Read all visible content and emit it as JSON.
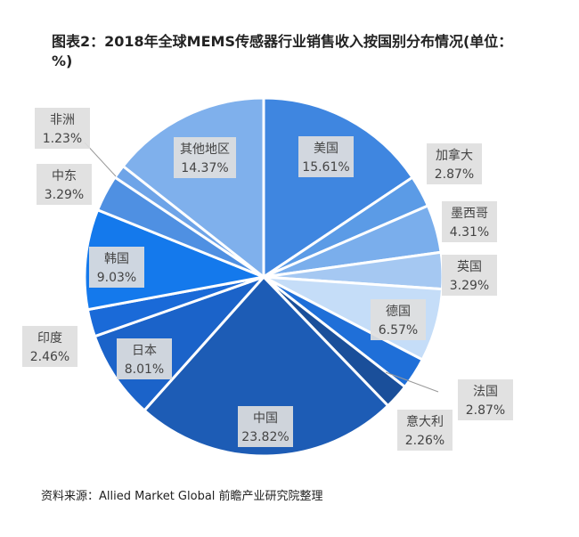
{
  "title": "图表2：2018年全球MEMS传感器行业销售收入按国别分布情况(单位：%)",
  "source": "资料来源：Allied Market Global 前瞻产业研究院整理",
  "chart_data": {
    "type": "pie",
    "title": "图表2：2018年全球MEMS传感器行业销售收入按国别分布情况(单位：%)",
    "unit": "%",
    "start": "12 o'clock, clockwise",
    "slices": [
      {
        "label": "美国",
        "value": 15.61,
        "color": "#3f86e0"
      },
      {
        "label": "加拿大",
        "value": 2.87,
        "color": "#5b9be6"
      },
      {
        "label": "墨西哥",
        "value": 4.31,
        "color": "#7aaeec"
      },
      {
        "label": "英国",
        "value": 3.29,
        "color": "#a5c8f2"
      },
      {
        "label": "德国",
        "value": 6.57,
        "color": "#c5ddf8"
      },
      {
        "label": "法国",
        "value": 2.87,
        "color": "#1f6fd8"
      },
      {
        "label": "意大利",
        "value": 2.26,
        "color": "#1a4f9a"
      },
      {
        "label": "中国",
        "value": 23.82,
        "color": "#1d5cb5"
      },
      {
        "label": "日本",
        "value": 8.01,
        "color": "#1b63c9"
      },
      {
        "label": "印度",
        "value": 2.46,
        "color": "#1a6ad8"
      },
      {
        "label": "韩国",
        "value": 9.03,
        "color": "#1479ec"
      },
      {
        "label": "中东",
        "value": 3.29,
        "color": "#4f90e2"
      },
      {
        "label": "非洲",
        "value": 1.23,
        "color": "#6ea4e8"
      },
      {
        "label": "其他地区",
        "value": 14.37,
        "color": "#7fb0ec"
      }
    ]
  }
}
